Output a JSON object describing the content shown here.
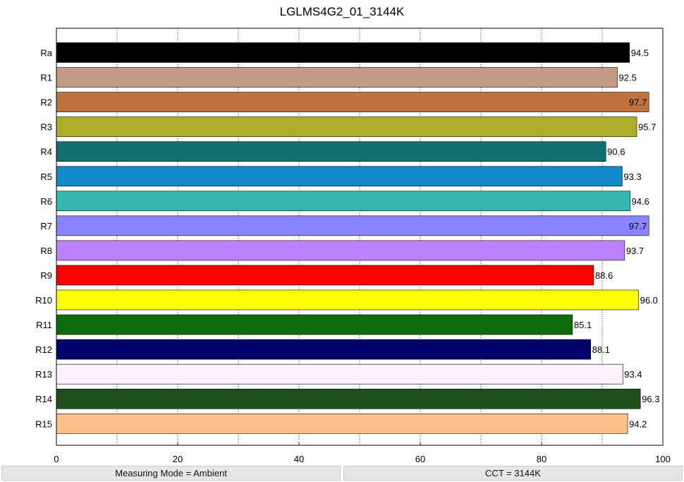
{
  "chart_data": {
    "type": "bar",
    "orientation": "horizontal",
    "title": "LGLMS4G2_01_3144K",
    "categories": [
      "Ra",
      "R1",
      "R2",
      "R3",
      "R4",
      "R5",
      "R6",
      "R7",
      "R8",
      "R9",
      "R10",
      "R11",
      "R12",
      "R13",
      "R14",
      "R15"
    ],
    "values": [
      94.5,
      92.5,
      97.7,
      95.7,
      90.6,
      93.3,
      94.6,
      97.7,
      93.7,
      88.6,
      96.0,
      85.1,
      88.1,
      93.4,
      96.3,
      94.2
    ],
    "value_labels": [
      "94.5",
      "92.5",
      "97.7",
      "95.7",
      "90.6",
      "93.3",
      "94.6",
      "97.7",
      "93.7",
      "88.6",
      "96.0",
      "85.1",
      "88.1",
      "93.4",
      "96.3",
      "94.2"
    ],
    "colors": [
      "#000000",
      "#c39a87",
      "#bf7240",
      "#aeac2b",
      "#117070",
      "#1188c8",
      "#35b6ae",
      "#8a84fe",
      "#bd82fe",
      "#fe0000",
      "#fefe00",
      "#0c6b0c",
      "#03036b",
      "#fef0fe",
      "#1d501d",
      "#fec088"
    ],
    "xlim": [
      0,
      100
    ],
    "xticks": [
      "0",
      "20",
      "40",
      "60",
      "80",
      "100"
    ],
    "grid": "vertical dotted",
    "xlabel": "",
    "ylabel": ""
  },
  "status": {
    "measuring_mode": "Measuring Mode = Ambient",
    "cct": "CCT = 3144K"
  }
}
